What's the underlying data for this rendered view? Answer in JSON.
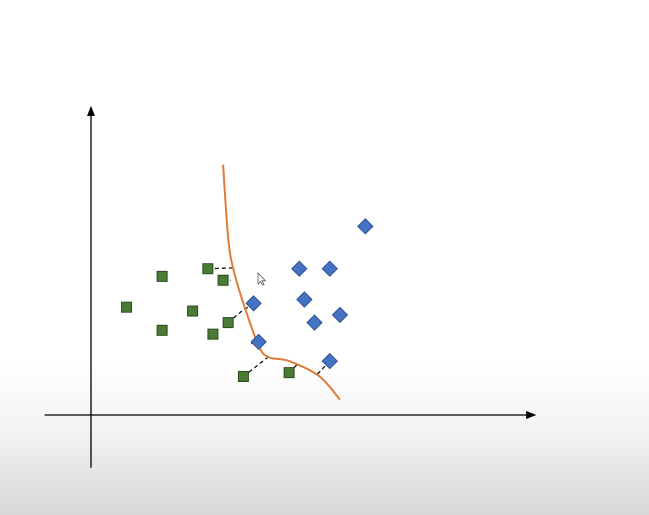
{
  "chart_data": {
    "type": "scatter",
    "title": "",
    "xlabel": "",
    "ylabel": "",
    "axes": {
      "x_arrow": true,
      "y_arrow": true,
      "tick_labels": false,
      "grid": false
    },
    "series": [
      {
        "marker": "square",
        "color": "#4a7c35",
        "border": "#2b4a1f",
        "points": [
          {
            "x": 0.7,
            "y": 2.8
          },
          {
            "x": 1.4,
            "y": 3.6
          },
          {
            "x": 1.4,
            "y": 2.2
          },
          {
            "x": 2.0,
            "y": 2.7
          },
          {
            "x": 2.3,
            "y": 3.8
          },
          {
            "x": 2.4,
            "y": 2.1
          },
          {
            "x": 2.6,
            "y": 3.5
          },
          {
            "x": 2.7,
            "y": 2.4
          },
          {
            "x": 3.0,
            "y": 1.0
          },
          {
            "x": 3.9,
            "y": 1.1
          }
        ]
      },
      {
        "marker": "diamond",
        "color": "#4472c4",
        "border": "#2f528f",
        "points": [
          {
            "x": 3.2,
            "y": 2.9
          },
          {
            "x": 3.3,
            "y": 1.9
          },
          {
            "x": 4.1,
            "y": 3.8
          },
          {
            "x": 4.2,
            "y": 3.0
          },
          {
            "x": 4.4,
            "y": 2.4
          },
          {
            "x": 4.7,
            "y": 3.8
          },
          {
            "x": 4.7,
            "y": 1.4
          },
          {
            "x": 4.9,
            "y": 2.6
          },
          {
            "x": 5.4,
            "y": 4.9
          }
        ]
      }
    ],
    "decision_boundary": {
      "color": "#e07b39",
      "points": [
        {
          "x": 2.6,
          "y": 6.5
        },
        {
          "x": 2.7,
          "y": 4.6
        },
        {
          "x": 2.8,
          "y": 3.8
        },
        {
          "x": 3.0,
          "y": 2.9
        },
        {
          "x": 3.3,
          "y": 1.8
        },
        {
          "x": 3.5,
          "y": 1.5
        },
        {
          "x": 3.9,
          "y": 1.4
        },
        {
          "x": 4.5,
          "y": 1.0
        },
        {
          "x": 4.9,
          "y": 0.4
        }
      ]
    },
    "margin_lines": [
      {
        "from": {
          "x": 2.3,
          "y": 3.8
        },
        "to": {
          "x": 2.8,
          "y": 3.82
        }
      },
      {
        "from": {
          "x": 2.6,
          "y": 3.5
        },
        "to": {
          "x": 2.75,
          "y": 3.5
        }
      },
      {
        "from": {
          "x": 2.7,
          "y": 2.4
        },
        "to": {
          "x": 2.97,
          "y": 2.7
        }
      },
      {
        "from": {
          "x": 3.2,
          "y": 2.9
        },
        "to": {
          "x": 3.0,
          "y": 2.72
        }
      },
      {
        "from": {
          "x": 3.3,
          "y": 1.9
        },
        "to": {
          "x": 3.15,
          "y": 1.85
        }
      },
      {
        "from": {
          "x": 3.0,
          "y": 1.0
        },
        "to": {
          "x": 3.5,
          "y": 1.52
        }
      },
      {
        "from": {
          "x": 3.9,
          "y": 1.1
        },
        "to": {
          "x": 4.05,
          "y": 1.3
        }
      },
      {
        "from": {
          "x": 4.7,
          "y": 1.4
        },
        "to": {
          "x": 4.45,
          "y": 1.05
        }
      }
    ],
    "xlim": [
      -0.5,
      6.5
    ],
    "ylim": [
      -0.8,
      8.0
    ]
  },
  "icons": {
    "cursor": "mouse-pointer-icon"
  }
}
